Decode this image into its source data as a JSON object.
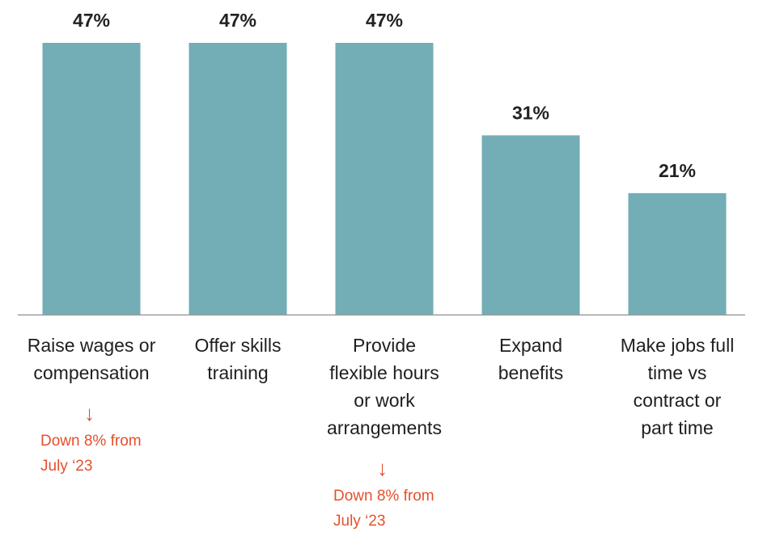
{
  "chart_data": {
    "type": "bar",
    "categories": [
      [
        "Raise wages or",
        "compensation"
      ],
      [
        "Offer skills",
        "training"
      ],
      [
        "Provide",
        "flexible hours",
        "or work",
        "arrangements"
      ],
      [
        "Expand",
        "benefits"
      ],
      [
        "Make jobs full",
        "time vs",
        "contract or",
        "part time"
      ]
    ],
    "values": [
      47,
      47,
      47,
      31,
      21
    ],
    "value_labels": [
      "47%",
      "47%",
      "47%",
      "31%",
      "21%"
    ],
    "ylim": [
      0,
      47
    ],
    "grid": false,
    "legend": "none",
    "annotations": [
      {
        "category_index": 0,
        "arrow": "down-arrow-icon",
        "lines": [
          "Down 8% from",
          "July ‘23"
        ]
      },
      {
        "category_index": 2,
        "arrow": "down-arrow-icon",
        "lines": [
          "Down 8% from",
          "July ‘23"
        ]
      }
    ]
  },
  "colors": {
    "bar": "#73adb5",
    "baseline": "#9a9a9a",
    "annotation": "#e4502b",
    "text": "#1f1f1f"
  }
}
